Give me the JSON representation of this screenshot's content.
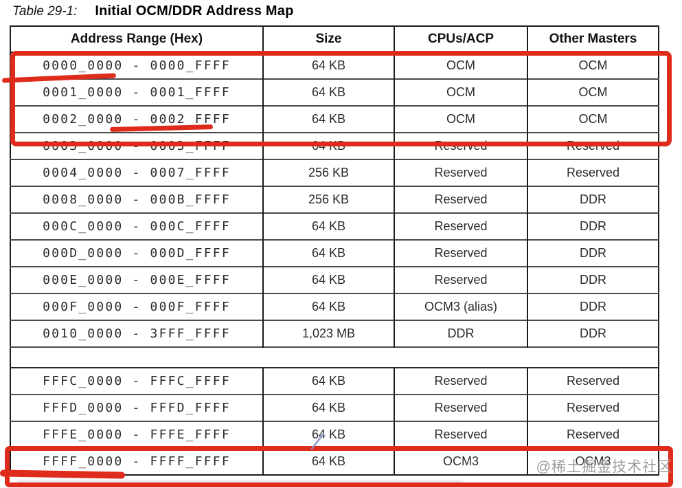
{
  "caption": {
    "label": "Table 29-1:",
    "title": "Initial OCM/DDR Address Map"
  },
  "table": {
    "headers": [
      "Address Range (Hex)",
      "Size",
      "CPUs/ACP",
      "Other Masters"
    ],
    "rows": [
      {
        "range": "0000_0000 - 0000_FFFF",
        "size": "64 KB",
        "cpus": "OCM",
        "other": "OCM"
      },
      {
        "range": "0001_0000 - 0001_FFFF",
        "size": "64 KB",
        "cpus": "OCM",
        "other": "OCM"
      },
      {
        "range": "0002_0000 - 0002_FFFF",
        "size": "64 KB",
        "cpus": "OCM",
        "other": "OCM"
      },
      {
        "range": "0003_0000 - 0003_FFFF",
        "size": "64 KB",
        "cpus": "Reserved",
        "other": "Reserved"
      },
      {
        "range": "0004_0000 - 0007_FFFF",
        "size": "256 KB",
        "cpus": "Reserved",
        "other": "Reserved"
      },
      {
        "range": "0008_0000 - 000B_FFFF",
        "size": "256 KB",
        "cpus": "Reserved",
        "other": "DDR"
      },
      {
        "range": "000C_0000 - 000C_FFFF",
        "size": "64 KB",
        "cpus": "Reserved",
        "other": "DDR"
      },
      {
        "range": "000D_0000 - 000D_FFFF",
        "size": "64 KB",
        "cpus": "Reserved",
        "other": "DDR"
      },
      {
        "range": "000E_0000 - 000E_FFFF",
        "size": "64 KB",
        "cpus": "Reserved",
        "other": "DDR"
      },
      {
        "range": "000F_0000 - 000F_FFFF",
        "size": "64 KB",
        "cpus": "OCM3 (alias)",
        "other": "DDR"
      },
      {
        "range": "0010_0000 - 3FFF_FFFF",
        "size": "1,023 MB",
        "cpus": "DDR",
        "other": "DDR"
      },
      {
        "type": "gap"
      },
      {
        "range": "FFFC_0000 - FFFC_FFFF",
        "size": "64 KB",
        "cpus": "Reserved",
        "other": "Reserved"
      },
      {
        "range": "FFFD_0000 - FFFD_FFFF",
        "size": "64 KB",
        "cpus": "Reserved",
        "other": "Reserved"
      },
      {
        "range": "FFFE_0000 - FFFE_FFFF",
        "size": "64 KB",
        "cpus": "Reserved",
        "other": "Reserved"
      },
      {
        "range": "FFFF_0000 - FFFF_FFFF",
        "size": "64 KB",
        "cpus": "OCM3",
        "other": "OCM3"
      }
    ]
  },
  "annotations": {
    "ink_color": "#df2b1c",
    "highlight_box_top": "rows 0000_0000 through 0002_FFFF",
    "highlight_box_bottom": "row FFFF_0000 - FFFF_FFFF"
  },
  "watermark": "@稀土掘金技术社区"
}
